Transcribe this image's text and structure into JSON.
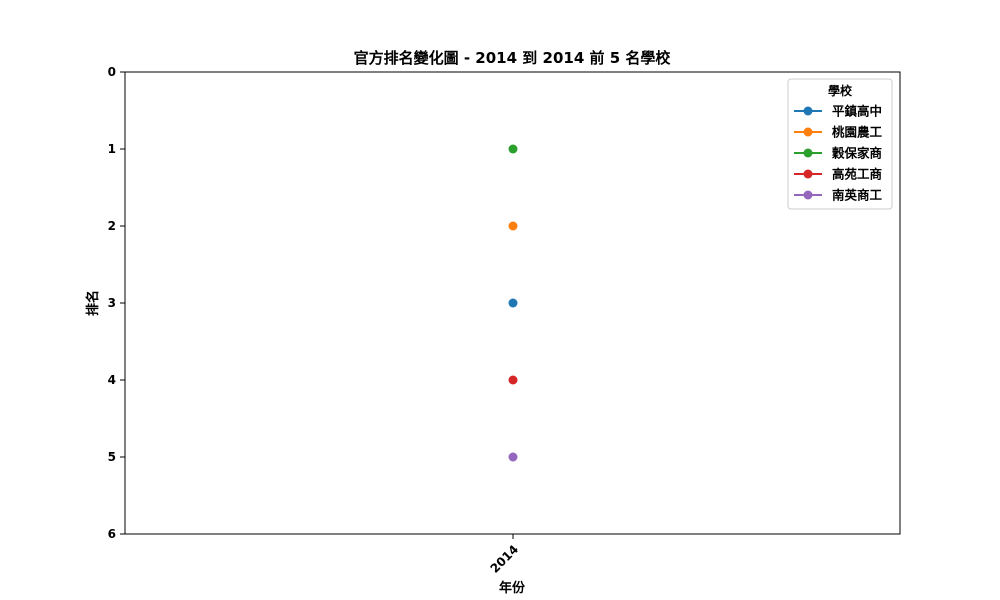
{
  "chart_data": {
    "type": "line",
    "title": "官方排名變化圖 - 2014 到 2014 前 5 名學校",
    "xlabel": "年份",
    "ylabel": "排名",
    "categories": [
      "2014"
    ],
    "y_ticks": [
      "0",
      "1",
      "2",
      "3",
      "4",
      "5",
      "6"
    ],
    "ylim": [
      6,
      0
    ],
    "y_inverted": true,
    "grid": false,
    "legend": {
      "title": "學校",
      "placement": "top-right"
    },
    "series": [
      {
        "name": "平鎮高中",
        "values": [
          3
        ],
        "color": "#1f77b4"
      },
      {
        "name": "桃園農工",
        "values": [
          2
        ],
        "color": "#ff7f0e"
      },
      {
        "name": "穀保家商",
        "values": [
          1
        ],
        "color": "#2ca02c"
      },
      {
        "name": "高苑工商",
        "values": [
          4
        ],
        "color": "#d62728"
      },
      {
        "name": "南英商工",
        "values": [
          5
        ],
        "color": "#9467bd"
      }
    ]
  }
}
